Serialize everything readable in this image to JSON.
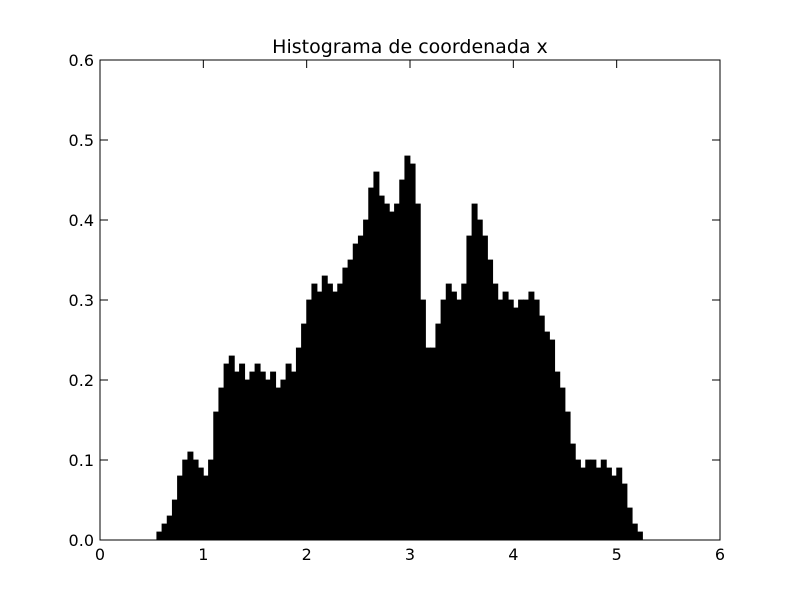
{
  "chart_data": {
    "type": "histogram",
    "title": "Histograma de coordenada x",
    "color": "#000000",
    "bins": [
      0.55,
      0.6,
      0.65,
      0.7,
      0.75,
      0.8,
      0.85,
      0.9,
      0.95,
      1.0,
      1.05,
      1.1,
      1.15,
      1.2,
      1.25,
      1.3,
      1.35,
      1.4,
      1.45,
      1.5,
      1.55,
      1.6,
      1.65,
      1.7,
      1.75,
      1.8,
      1.85,
      1.9,
      1.95,
      2.0,
      2.05,
      2.1,
      2.15,
      2.2,
      2.25,
      2.3,
      2.35,
      2.4,
      2.45,
      2.5,
      2.55,
      2.6,
      2.65,
      2.7,
      2.75,
      2.8,
      2.85,
      2.9,
      2.95,
      3.0,
      3.05,
      3.1,
      3.15,
      3.2,
      3.25,
      3.3,
      3.35,
      3.4,
      3.45,
      3.5,
      3.55,
      3.6,
      3.65,
      3.7,
      3.75,
      3.8,
      3.85,
      3.9,
      3.95,
      4.0,
      4.05,
      4.1,
      4.15,
      4.2,
      4.25,
      4.3,
      4.35,
      4.4,
      4.45,
      4.5,
      4.55,
      4.6,
      4.65,
      4.7,
      4.75,
      4.8,
      4.85,
      4.9,
      4.95,
      5.0,
      5.05,
      5.1,
      5.15,
      5.2,
      5.25
    ],
    "values": [
      0.01,
      0.02,
      0.03,
      0.05,
      0.08,
      0.1,
      0.11,
      0.1,
      0.09,
      0.08,
      0.1,
      0.16,
      0.19,
      0.22,
      0.23,
      0.21,
      0.22,
      0.2,
      0.21,
      0.22,
      0.21,
      0.2,
      0.21,
      0.19,
      0.2,
      0.22,
      0.21,
      0.24,
      0.27,
      0.3,
      0.32,
      0.31,
      0.33,
      0.32,
      0.31,
      0.32,
      0.34,
      0.35,
      0.37,
      0.38,
      0.4,
      0.44,
      0.46,
      0.43,
      0.42,
      0.41,
      0.42,
      0.45,
      0.48,
      0.47,
      0.42,
      0.3,
      0.24,
      0.24,
      0.27,
      0.3,
      0.32,
      0.31,
      0.3,
      0.32,
      0.38,
      0.42,
      0.4,
      0.38,
      0.35,
      0.32,
      0.3,
      0.31,
      0.3,
      0.29,
      0.3,
      0.3,
      0.31,
      0.3,
      0.28,
      0.26,
      0.25,
      0.21,
      0.19,
      0.16,
      0.12,
      0.1,
      0.09,
      0.1,
      0.1,
      0.09,
      0.1,
      0.09,
      0.08,
      0.09,
      0.07,
      0.04,
      0.02,
      0.01
    ],
    "xlim": [
      0,
      6
    ],
    "xticks": [
      0,
      1,
      2,
      3,
      4,
      5,
      6
    ],
    "ylim": [
      0,
      0.6
    ],
    "yticks": [
      {
        "value": 0,
        "label": "0.0"
      },
      0.1,
      0.2,
      0.3,
      0.4,
      0.5,
      0.6
    ]
  }
}
